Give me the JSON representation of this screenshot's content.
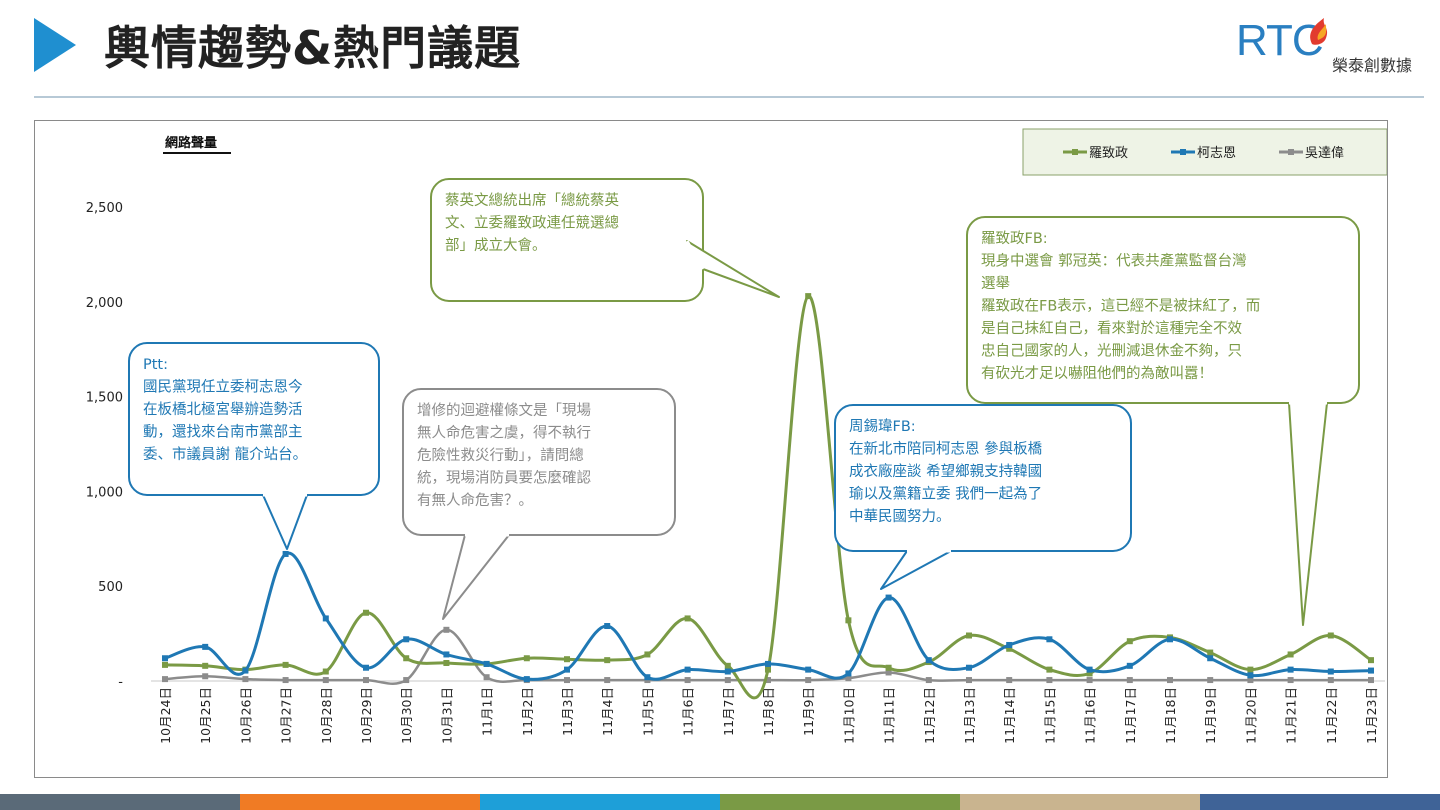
{
  "header": {
    "title": "輿情趨勢&熱門議題",
    "logo_text": "RTC",
    "logo_subtitle": "榮泰創數據"
  },
  "colors": {
    "accent_arrow": "#1f8fd0",
    "bottom_bar": [
      "#5a6a78",
      "#f07b24",
      "#1e9fd8",
      "#7a9a45",
      "#c9b48f",
      "#3f6397"
    ]
  },
  "chart_data": {
    "type": "line",
    "title": "網路聲量",
    "ylim": [
      0,
      2500
    ],
    "yticks": [
      0,
      500,
      1000,
      1500,
      2000,
      2500
    ],
    "ytick_labels": [
      "-",
      "500",
      "1,000",
      "1,500",
      "2,000",
      "2,500"
    ],
    "grid": false,
    "legend_position": "top-right",
    "categories": [
      "10月24日",
      "10月25日",
      "10月26日",
      "10月27日",
      "10月28日",
      "10月29日",
      "10月30日",
      "10月31日",
      "11月1日",
      "11月2日",
      "11月3日",
      "11月4日",
      "11月5日",
      "11月6日",
      "11月7日",
      "11月8日",
      "11月9日",
      "11月10日",
      "11月11日",
      "11月12日",
      "11月13日",
      "11月14日",
      "11月15日",
      "11月16日",
      "11月17日",
      "11月18日",
      "11月19日",
      "11月20日",
      "11月21日",
      "11月22日",
      "11月23日"
    ],
    "series": [
      {
        "name": "羅致政",
        "color": "#7a9a45",
        "values": [
          85,
          80,
          60,
          85,
          50,
          360,
          120,
          95,
          90,
          120,
          115,
          110,
          140,
          330,
          80,
          60,
          2030,
          320,
          70,
          100,
          240,
          170,
          60,
          40,
          210,
          230,
          150,
          60,
          140,
          240,
          110
        ]
      },
      {
        "name": "柯志恩",
        "color": "#1f78b4",
        "values": [
          120,
          180,
          55,
          670,
          330,
          70,
          220,
          140,
          90,
          10,
          60,
          290,
          20,
          60,
          50,
          90,
          60,
          40,
          440,
          110,
          70,
          190,
          220,
          60,
          80,
          220,
          120,
          30,
          60,
          50,
          55
        ]
      },
      {
        "name": "吳達偉",
        "color": "#8c8c8c",
        "values": [
          10,
          25,
          10,
          5,
          5,
          5,
          5,
          270,
          20,
          5,
          5,
          5,
          5,
          5,
          5,
          5,
          5,
          15,
          45,
          5,
          5,
          5,
          5,
          5,
          5,
          5,
          5,
          5,
          5,
          5,
          5
        ]
      }
    ],
    "annotations": [
      {
        "id": "ptt",
        "color": "#1f78b4",
        "lines": [
          "Ptt:",
          "國民黨現任立委柯志恩今",
          "在板橋北極宮舉辦造勢活",
          "動，還找來台南市黨部主",
          "委、市議員謝 龍介站台。"
        ]
      },
      {
        "id": "q31",
        "color": "#8c8c8c",
        "lines": [
          "增修的迴避權條文是「現場",
          "無人命危害之虞，得不執行",
          "危險性救災行動」，請問總",
          "統，現場消防員要怎麼確認",
          "有無人命危害？。"
        ]
      },
      {
        "id": "tsai",
        "color": "#7a9a45",
        "lines": [
          "蔡英文總統出席「總統蔡英",
          "文、立委羅致政連任競選總",
          "部」成立大會。"
        ]
      },
      {
        "id": "chou",
        "color": "#1f78b4",
        "lines": [
          "周錫瑋FB:",
          "在新北市陪同柯志恩 參與板橋",
          "成衣廠座談 希望鄉親支持韓國",
          "瑜以及黨籍立委 我們一起為了",
          "中華民國努力。"
        ]
      },
      {
        "id": "lo",
        "color": "#7a9a45",
        "lines": [
          "羅致政FB:",
          "現身中選會 郭冠英：代表共產黨監督台灣",
          "選舉",
          "羅致政在FB表示，這已經不是被抹紅了，而",
          "是自己抹紅自己，看來對於這種完全不效",
          "忠自己國家的人，光刪減退休金不夠，只",
          "有砍光才足以嚇阻他們的為敵叫囂！"
        ]
      }
    ]
  }
}
